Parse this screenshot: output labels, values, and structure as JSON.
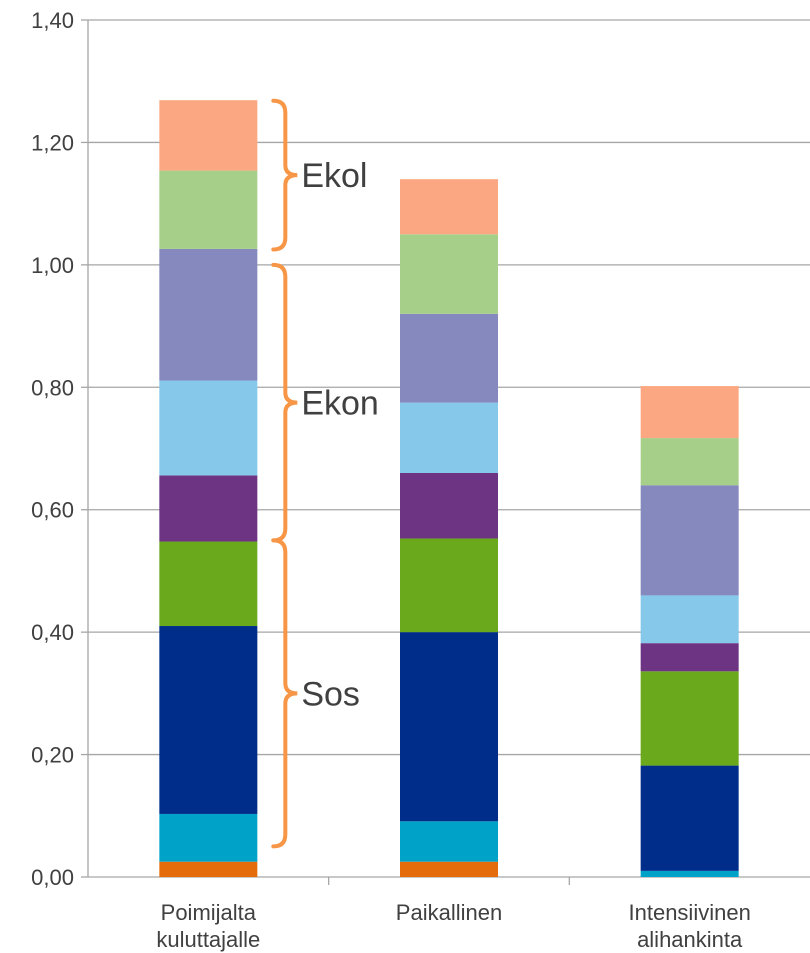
{
  "chart_data": {
    "type": "bar",
    "stacked": true,
    "categories": [
      [
        "Poimijalta",
        "kuluttajalle"
      ],
      [
        "Paikallinen"
      ],
      [
        "Intensiivinen",
        "alihankinta"
      ]
    ],
    "yticks": [
      "0,00",
      "0,20",
      "0,40",
      "0,60",
      "0,80",
      "1,00",
      "1,20",
      "1,40"
    ],
    "ylim": [
      0,
      1.4
    ],
    "grid": true,
    "title": "",
    "xlabel": "",
    "ylabel": "",
    "segment_colors": [
      "#e46c0a",
      "#00a2c7",
      "#002c8a",
      "#6aa81c",
      "#6c3483",
      "#85c8ea",
      "#8689bd",
      "#a6cf8a",
      "#fba882"
    ],
    "series": [
      {
        "values": [
          0.025,
          0.025,
          0.0
        ]
      },
      {
        "values": [
          0.078,
          0.066,
          0.01
        ]
      },
      {
        "values": [
          0.307,
          0.309,
          0.172
        ]
      },
      {
        "values": [
          0.138,
          0.153,
          0.154
        ]
      },
      {
        "values": [
          0.108,
          0.107,
          0.046
        ]
      },
      {
        "values": [
          0.155,
          0.115,
          0.078
        ]
      },
      {
        "values": [
          0.215,
          0.145,
          0.18
        ]
      },
      {
        "values": [
          0.128,
          0.13,
          0.077
        ]
      },
      {
        "values": [
          0.115,
          0.09,
          0.085
        ]
      }
    ],
    "annotations": [
      {
        "text": "Ekol",
        "from": 1.025,
        "to": 1.268
      },
      {
        "text": "Ekon",
        "from": 0.55,
        "to": 1.0
      },
      {
        "text": "Sos",
        "from": 0.05,
        "to": 0.55
      }
    ],
    "brace_color": "#f79646"
  }
}
